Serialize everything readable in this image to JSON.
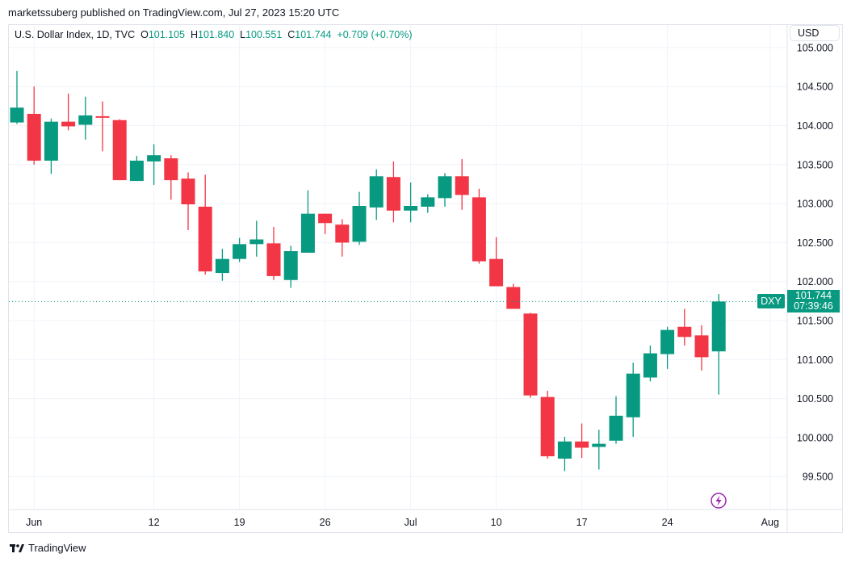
{
  "publisher_line": "marketssuberg published on TradingView.com, Jul 27, 2023 15:20 UTC",
  "legend": {
    "symbol": "U.S. Dollar Index, 1D, TVC",
    "o_label": "O",
    "o_value": "101.105",
    "h_label": "H",
    "h_value": "101.840",
    "l_label": "L",
    "l_value": "100.551",
    "c_label": "C",
    "c_value": "101.744",
    "change": "+0.709 (+0.70%)"
  },
  "currency_button": "USD",
  "last_price": {
    "ticker": "DXY",
    "price": "101.744",
    "countdown": "07:39:46",
    "value": 101.744
  },
  "footer_brand": "TradingView",
  "colors": {
    "up": "#089981",
    "down": "#f23645",
    "grid": "#f0f3fa",
    "accent_icon": "#9c27b0"
  },
  "chart_data": {
    "type": "candlestick",
    "title": "U.S. Dollar Index, 1D, TVC",
    "ylim": [
      99.1,
      105.05
    ],
    "y_ticks": [
      "99.500",
      "100.000",
      "100.500",
      "101.000",
      "101.500",
      "102.000",
      "102.500",
      "103.000",
      "103.500",
      "104.000",
      "104.500",
      "105.000"
    ],
    "x_ticks": [
      {
        "label": "Jun",
        "bar": 1
      },
      {
        "label": "12",
        "bar": 8
      },
      {
        "label": "19",
        "bar": 13
      },
      {
        "label": "26",
        "bar": 18
      },
      {
        "label": "Jul",
        "bar": 23
      },
      {
        "label": "10",
        "bar": 28
      },
      {
        "label": "17",
        "bar": 33
      },
      {
        "label": "24",
        "bar": 38
      },
      {
        "label": "Aug",
        "bar": 44
      }
    ],
    "candles": [
      {
        "date": "2023-05-31",
        "o": 104.04,
        "h": 104.7,
        "l": 104.02,
        "c": 104.23
      },
      {
        "date": "2023-06-01",
        "o": 104.15,
        "h": 104.5,
        "l": 103.5,
        "c": 103.55
      },
      {
        "date": "2023-06-02",
        "o": 103.55,
        "h": 104.09,
        "l": 103.38,
        "c": 104.05
      },
      {
        "date": "2023-06-05",
        "o": 104.05,
        "h": 104.41,
        "l": 103.94,
        "c": 103.99
      },
      {
        "date": "2023-06-06",
        "o": 104.01,
        "h": 104.37,
        "l": 103.82,
        "c": 104.13
      },
      {
        "date": "2023-06-07",
        "o": 104.12,
        "h": 104.31,
        "l": 103.67,
        "c": 104.1
      },
      {
        "date": "2023-06-08",
        "o": 104.07,
        "h": 104.08,
        "l": 103.3,
        "c": 103.3
      },
      {
        "date": "2023-06-09",
        "o": 103.29,
        "h": 103.61,
        "l": 103.29,
        "c": 103.55
      },
      {
        "date": "2023-06-12",
        "o": 103.54,
        "h": 103.76,
        "l": 103.24,
        "c": 103.62
      },
      {
        "date": "2023-06-13",
        "o": 103.58,
        "h": 103.62,
        "l": 103.05,
        "c": 103.3
      },
      {
        "date": "2023-06-14",
        "o": 103.32,
        "h": 103.4,
        "l": 102.66,
        "c": 102.99
      },
      {
        "date": "2023-06-15",
        "o": 102.96,
        "h": 103.37,
        "l": 102.09,
        "c": 102.13
      },
      {
        "date": "2023-06-16",
        "o": 102.11,
        "h": 102.42,
        "l": 102.01,
        "c": 102.29
      },
      {
        "date": "2023-06-19",
        "o": 102.29,
        "h": 102.56,
        "l": 102.25,
        "c": 102.48
      },
      {
        "date": "2023-06-20",
        "o": 102.48,
        "h": 102.78,
        "l": 102.32,
        "c": 102.54
      },
      {
        "date": "2023-06-21",
        "o": 102.49,
        "h": 102.7,
        "l": 102.02,
        "c": 102.07
      },
      {
        "date": "2023-06-22",
        "o": 102.02,
        "h": 102.46,
        "l": 101.92,
        "c": 102.39
      },
      {
        "date": "2023-06-23",
        "o": 102.37,
        "h": 103.17,
        "l": 102.37,
        "c": 102.87
      },
      {
        "date": "2023-06-26",
        "o": 102.87,
        "h": 102.87,
        "l": 102.61,
        "c": 102.75
      },
      {
        "date": "2023-06-27",
        "o": 102.73,
        "h": 102.8,
        "l": 102.32,
        "c": 102.5
      },
      {
        "date": "2023-06-28",
        "o": 102.51,
        "h": 103.15,
        "l": 102.47,
        "c": 102.97
      },
      {
        "date": "2023-06-29",
        "o": 102.95,
        "h": 103.44,
        "l": 102.79,
        "c": 103.35
      },
      {
        "date": "2023-06-30",
        "o": 103.34,
        "h": 103.54,
        "l": 102.76,
        "c": 102.91
      },
      {
        "date": "2023-07-03",
        "o": 102.91,
        "h": 103.27,
        "l": 102.76,
        "c": 102.97
      },
      {
        "date": "2023-07-04",
        "o": 102.96,
        "h": 103.12,
        "l": 102.88,
        "c": 103.08
      },
      {
        "date": "2023-07-05",
        "o": 103.07,
        "h": 103.39,
        "l": 102.96,
        "c": 103.35
      },
      {
        "date": "2023-07-06",
        "o": 103.35,
        "h": 103.57,
        "l": 102.92,
        "c": 103.11
      },
      {
        "date": "2023-07-07",
        "o": 103.08,
        "h": 103.19,
        "l": 102.23,
        "c": 102.26
      },
      {
        "date": "2023-07-10",
        "o": 102.29,
        "h": 102.57,
        "l": 101.94,
        "c": 101.94
      },
      {
        "date": "2023-07-11",
        "o": 101.93,
        "h": 101.97,
        "l": 101.65,
        "c": 101.65
      },
      {
        "date": "2023-07-12",
        "o": 101.59,
        "h": 101.6,
        "l": 100.51,
        "c": 100.54
      },
      {
        "date": "2023-07-13",
        "o": 100.52,
        "h": 100.6,
        "l": 99.73,
        "c": 99.76
      },
      {
        "date": "2023-07-14",
        "o": 99.73,
        "h": 100.01,
        "l": 99.57,
        "c": 99.95
      },
      {
        "date": "2023-07-17",
        "o": 99.95,
        "h": 100.18,
        "l": 99.74,
        "c": 99.87
      },
      {
        "date": "2023-07-18",
        "o": 99.88,
        "h": 100.1,
        "l": 99.59,
        "c": 99.92
      },
      {
        "date": "2023-07-19",
        "o": 99.96,
        "h": 100.53,
        "l": 99.92,
        "c": 100.28
      },
      {
        "date": "2023-07-20",
        "o": 100.26,
        "h": 100.96,
        "l": 100.01,
        "c": 100.82
      },
      {
        "date": "2023-07-21",
        "o": 100.77,
        "h": 101.18,
        "l": 100.72,
        "c": 101.08
      },
      {
        "date": "2023-07-24",
        "o": 101.07,
        "h": 101.42,
        "l": 100.88,
        "c": 101.38
      },
      {
        "date": "2023-07-25",
        "o": 101.42,
        "h": 101.65,
        "l": 101.18,
        "c": 101.29
      },
      {
        "date": "2023-07-26",
        "o": 101.31,
        "h": 101.44,
        "l": 100.86,
        "c": 101.03
      },
      {
        "date": "2023-07-27",
        "o": 101.105,
        "h": 101.84,
        "l": 100.551,
        "c": 101.744
      }
    ]
  }
}
